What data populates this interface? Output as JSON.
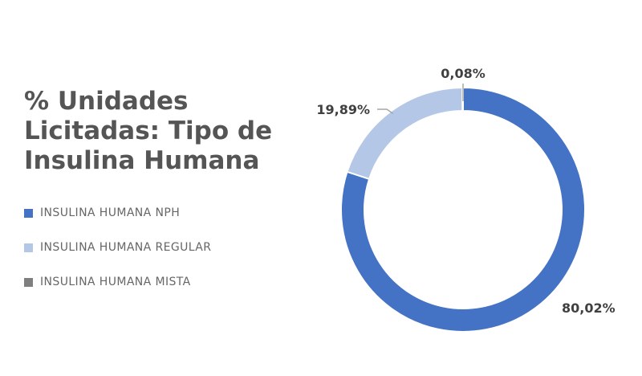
{
  "chart_data": {
    "type": "pie",
    "title_lines": [
      "% Unidades",
      "Licitadas: Tipo de",
      "Insulina Humana"
    ],
    "legend_position": "left",
    "categories": [
      "INSULINA HUMANA NPH",
      "INSULINA HUMANA REGULAR",
      "INSULINA HUMANA MISTA"
    ],
    "values": [
      80.02,
      19.89,
      0.08
    ],
    "value_labels": [
      "80,02%",
      "19,89%",
      "0,08%"
    ],
    "colors": [
      "#4472C4",
      "#B4C7E7",
      "#7F7F7F"
    ]
  }
}
